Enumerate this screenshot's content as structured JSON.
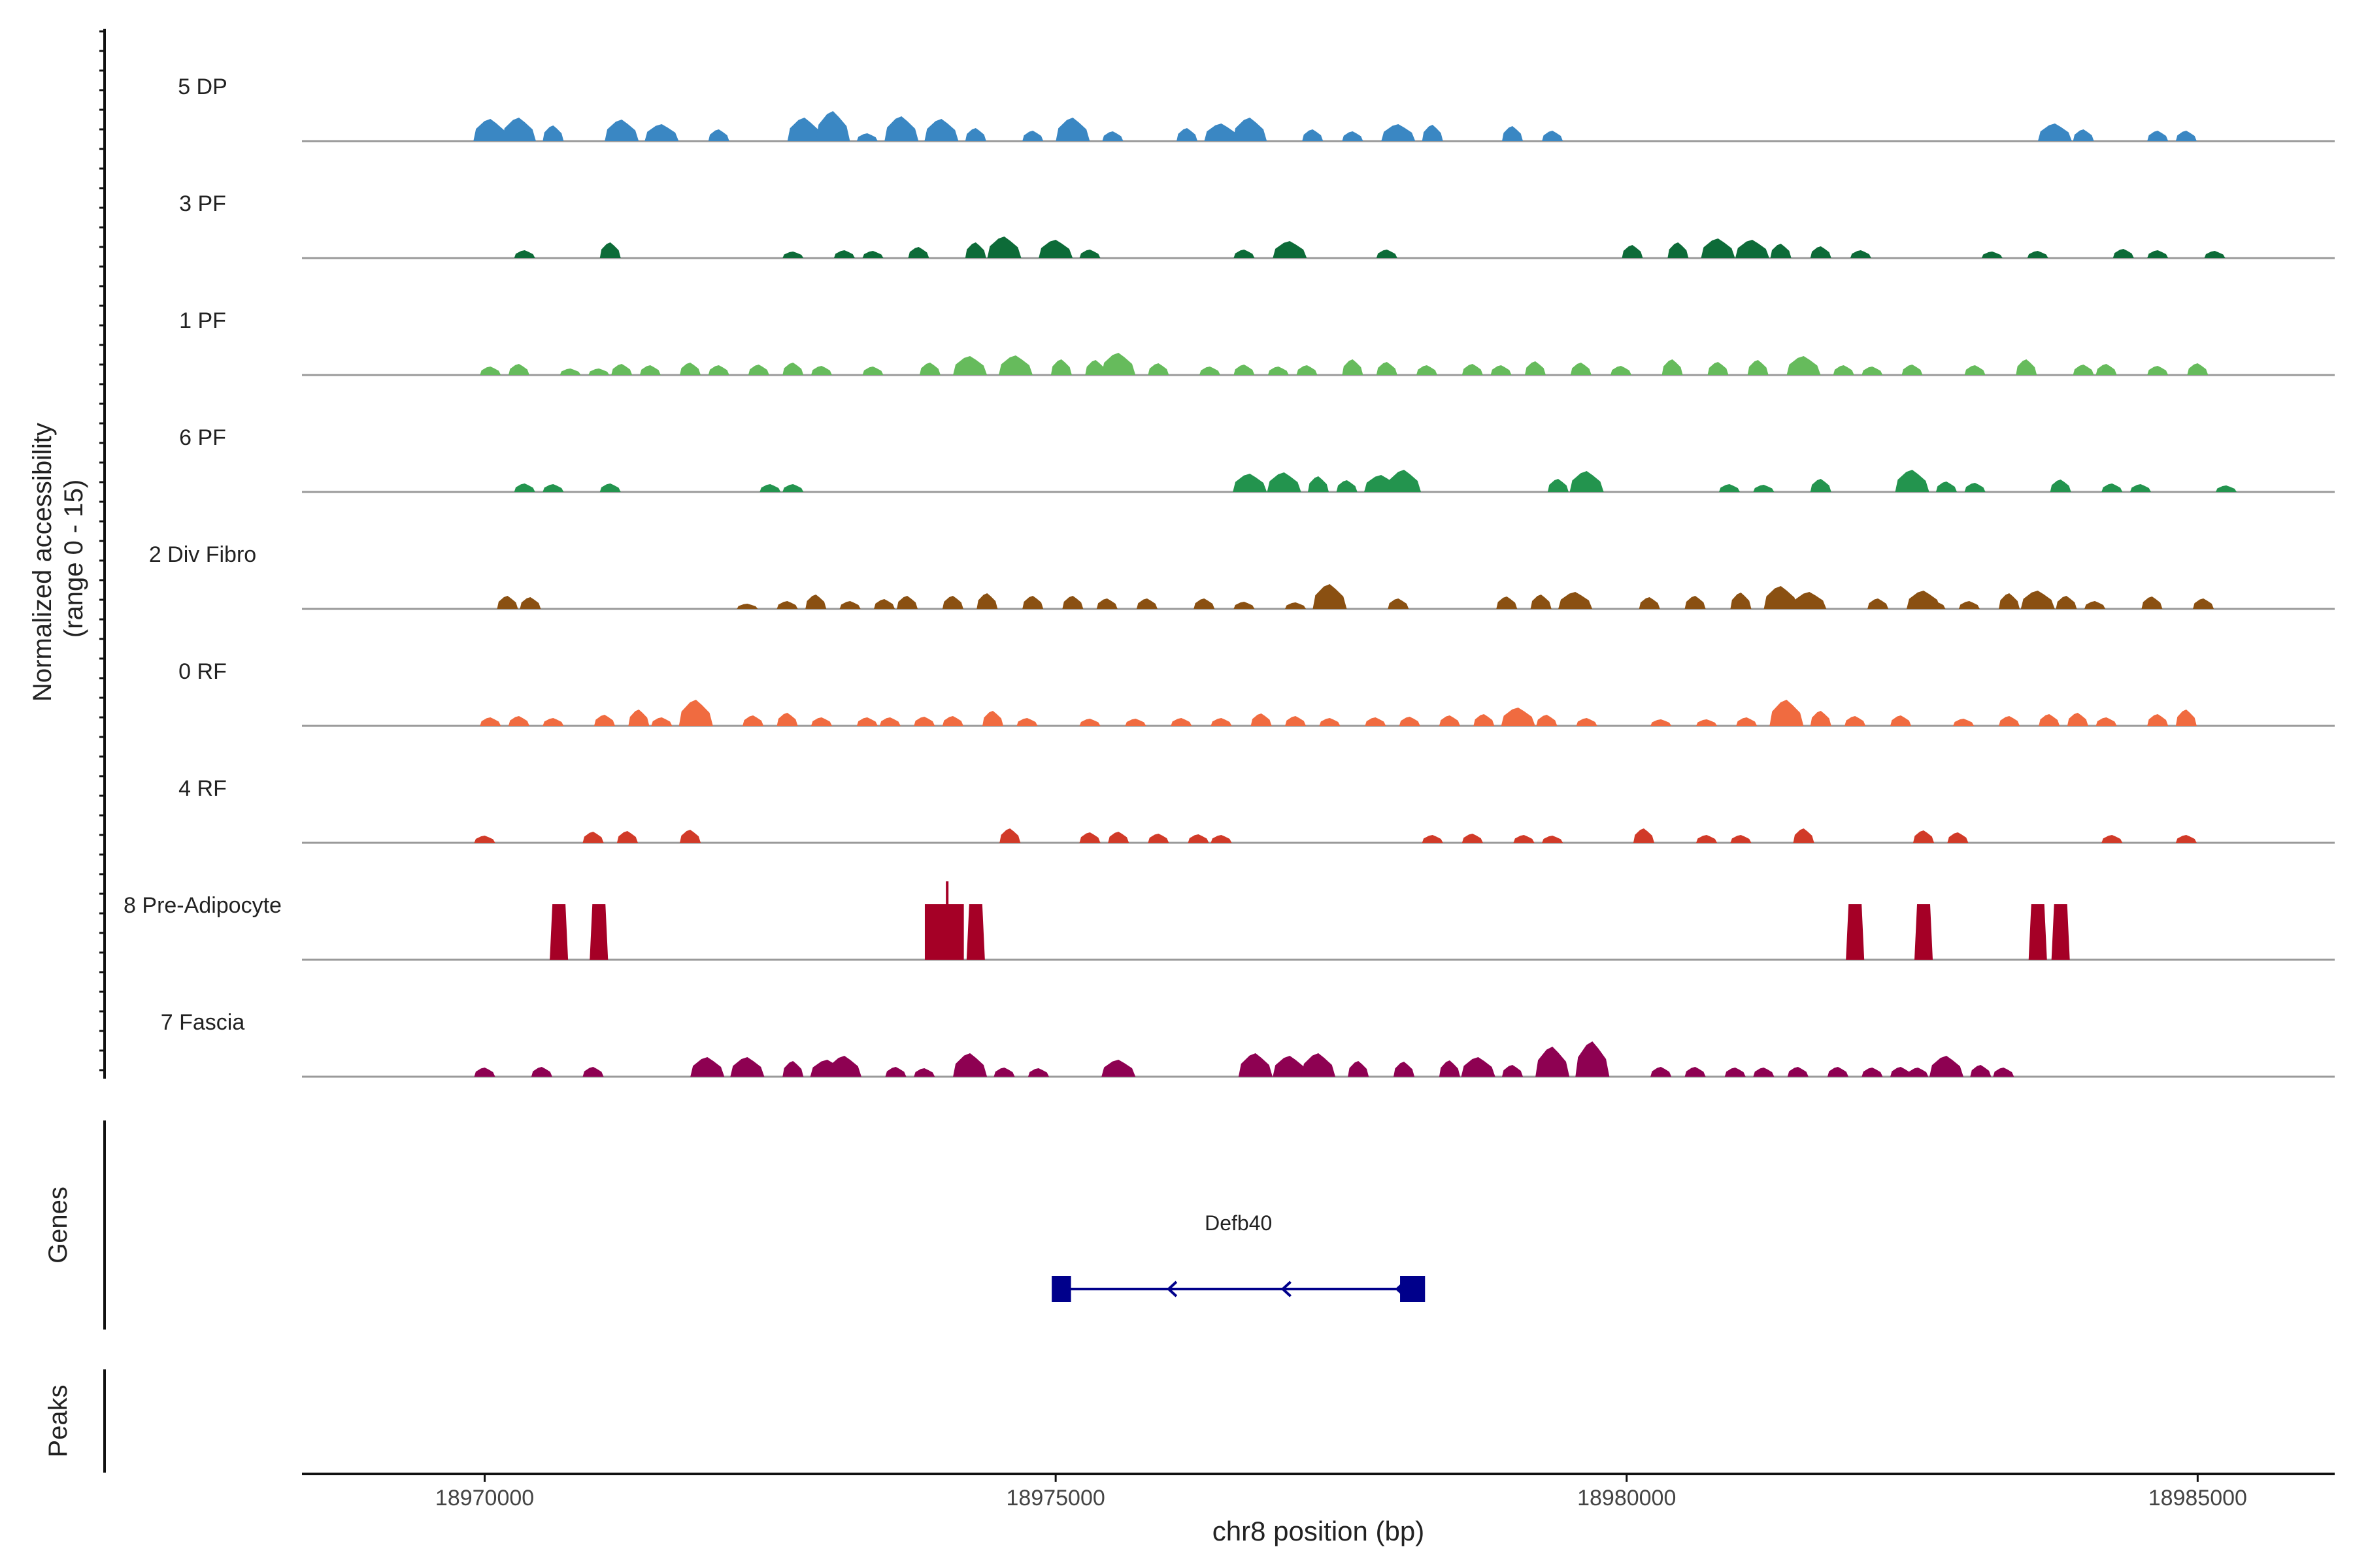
{
  "chart_data": {
    "type": "area",
    "title": "",
    "ylabel_line1": "Normalized accessibility",
    "ylabel_line2": "(range 0 - 15)",
    "xlabel": "chr8 position (bp)",
    "xlim": [
      18968400,
      18986200
    ],
    "ylim": [
      0,
      15
    ],
    "xticks": [
      18970000,
      18975000,
      18980000,
      18985000
    ],
    "xtick_labels": [
      "18970000",
      "18975000",
      "18980000",
      "18985000"
    ],
    "genes_label": "Genes",
    "peaks_label": "Peaks",
    "gene": {
      "name": "Defb40",
      "strand": "-",
      "start": 18975000,
      "end": 18978200,
      "exons": [
        [
          18975000,
          18975100
        ],
        [
          18978050,
          18978200
        ]
      ],
      "color": "#00008b"
    },
    "series": [
      {
        "name": "5 DP",
        "color": "#3a87c3",
        "peaks": [
          [
            18970050,
            3.4
          ],
          [
            18970300,
            3.6
          ],
          [
            18970600,
            2.4
          ],
          [
            18971200,
            3.3
          ],
          [
            18971550,
            2.6
          ],
          [
            18972050,
            1.8
          ],
          [
            18972800,
            3.6
          ],
          [
            18973050,
            4.6
          ],
          [
            18973350,
            1.2
          ],
          [
            18973650,
            3.8
          ],
          [
            18974000,
            3.4
          ],
          [
            18974300,
            2.0
          ],
          [
            18974800,
            1.6
          ],
          [
            18975150,
            3.6
          ],
          [
            18975500,
            1.5
          ],
          [
            18976150,
            2.0
          ],
          [
            18976450,
            2.7
          ],
          [
            18976700,
            3.6
          ],
          [
            18977250,
            1.8
          ],
          [
            18977600,
            1.5
          ],
          [
            18978000,
            2.6
          ],
          [
            18978300,
            2.5
          ],
          [
            18979000,
            2.3
          ],
          [
            18979350,
            1.6
          ],
          [
            18983750,
            2.7
          ],
          [
            18984000,
            1.8
          ],
          [
            18984650,
            1.6
          ],
          [
            18984900,
            1.6
          ]
        ]
      },
      {
        "name": "3 PF",
        "color": "#0d6b38",
        "peaks": [
          [
            18970350,
            1.2
          ],
          [
            18971100,
            2.4
          ],
          [
            18972700,
            1.0
          ],
          [
            18973150,
            1.2
          ],
          [
            18973400,
            1.1
          ],
          [
            18973800,
            1.7
          ],
          [
            18974300,
            2.4
          ],
          [
            18974550,
            3.3
          ],
          [
            18975000,
            2.8
          ],
          [
            18975300,
            1.3
          ],
          [
            18976650,
            1.3
          ],
          [
            18977050,
            2.6
          ],
          [
            18977900,
            1.3
          ],
          [
            18980050,
            2.0
          ],
          [
            18980450,
            2.4
          ],
          [
            18980800,
            3.0
          ],
          [
            18981100,
            2.8
          ],
          [
            18981350,
            2.2
          ],
          [
            18981700,
            1.8
          ],
          [
            18982050,
            1.2
          ],
          [
            18983200,
            1.0
          ],
          [
            18983600,
            1.1
          ],
          [
            18984350,
            1.4
          ],
          [
            18984650,
            1.2
          ],
          [
            18985150,
            1.1
          ]
        ]
      },
      {
        "name": "1 PF",
        "color": "#66bb5c",
        "peaks": [
          [
            18970050,
            1.3
          ],
          [
            18970300,
            1.7
          ],
          [
            18970750,
            1.0
          ],
          [
            18971000,
            1.0
          ],
          [
            18971200,
            1.7
          ],
          [
            18971450,
            1.5
          ],
          [
            18971800,
            1.9
          ],
          [
            18972050,
            1.5
          ],
          [
            18972400,
            1.6
          ],
          [
            18972700,
            1.9
          ],
          [
            18972950,
            1.4
          ],
          [
            18973400,
            1.3
          ],
          [
            18973900,
            1.9
          ],
          [
            18974250,
            2.9
          ],
          [
            18974650,
            3.0
          ],
          [
            18975050,
            2.4
          ],
          [
            18975350,
            2.3
          ],
          [
            18975550,
            3.4
          ],
          [
            18975900,
            1.8
          ],
          [
            18976350,
            1.3
          ],
          [
            18976650,
            1.6
          ],
          [
            18976950,
            1.3
          ],
          [
            18977200,
            1.5
          ],
          [
            18977600,
            2.4
          ],
          [
            18977900,
            2.0
          ],
          [
            18978250,
            1.5
          ],
          [
            18978650,
            1.7
          ],
          [
            18978900,
            1.5
          ],
          [
            18979200,
            2.1
          ],
          [
            18979600,
            1.9
          ],
          [
            18979950,
            1.4
          ],
          [
            18980400,
            2.4
          ],
          [
            18980800,
            2.0
          ],
          [
            18981150,
            2.3
          ],
          [
            18981550,
            2.9
          ],
          [
            18981900,
            1.5
          ],
          [
            18982150,
            1.3
          ],
          [
            18982500,
            1.6
          ],
          [
            18983050,
            1.5
          ],
          [
            18983500,
            2.4
          ],
          [
            18984000,
            1.6
          ],
          [
            18984200,
            1.7
          ],
          [
            18984650,
            1.4
          ],
          [
            18985000,
            1.8
          ]
        ]
      },
      {
        "name": "6 PF",
        "color": "#23944e",
        "peaks": [
          [
            18970350,
            1.3
          ],
          [
            18970600,
            1.2
          ],
          [
            18971100,
            1.3
          ],
          [
            18972500,
            1.2
          ],
          [
            18972700,
            1.2
          ],
          [
            18976700,
            2.8
          ],
          [
            18977000,
            3.0
          ],
          [
            18977300,
            2.4
          ],
          [
            18977550,
            1.8
          ],
          [
            18977850,
            2.6
          ],
          [
            18978050,
            3.4
          ],
          [
            18979400,
            2.0
          ],
          [
            18979650,
            3.2
          ],
          [
            18980900,
            1.2
          ],
          [
            18981200,
            1.1
          ],
          [
            18981700,
            2.0
          ],
          [
            18982500,
            3.4
          ],
          [
            18982800,
            1.6
          ],
          [
            18983050,
            1.4
          ],
          [
            18983800,
            1.9
          ],
          [
            18984250,
            1.3
          ],
          [
            18984500,
            1.2
          ],
          [
            18985250,
            1.0
          ]
        ]
      },
      {
        "name": "2 Div Fibro",
        "color": "#8a5012",
        "peaks": [
          [
            18970200,
            2.0
          ],
          [
            18970400,
            1.8
          ],
          [
            18972300,
            0.8
          ],
          [
            18972650,
            1.2
          ],
          [
            18972900,
            2.2
          ],
          [
            18973200,
            1.2
          ],
          [
            18973500,
            1.5
          ],
          [
            18973700,
            2.0
          ],
          [
            18974100,
            2.0
          ],
          [
            18974400,
            2.4
          ],
          [
            18974800,
            2.0
          ],
          [
            18975150,
            2.0
          ],
          [
            18975450,
            1.6
          ],
          [
            18975800,
            1.6
          ],
          [
            18976300,
            1.6
          ],
          [
            18976650,
            1.1
          ],
          [
            18977100,
            1.0
          ],
          [
            18977400,
            3.8
          ],
          [
            18978000,
            1.6
          ],
          [
            18978950,
            1.9
          ],
          [
            18979250,
            2.2
          ],
          [
            18979550,
            2.6
          ],
          [
            18980200,
            1.8
          ],
          [
            18980600,
            2.0
          ],
          [
            18981000,
            2.5
          ],
          [
            18981350,
            3.5
          ],
          [
            18981600,
            2.6
          ],
          [
            18982200,
            1.6
          ],
          [
            18982600,
            2.8
          ],
          [
            18982700,
            1.2
          ],
          [
            18983000,
            1.2
          ],
          [
            18983350,
            2.4
          ],
          [
            18983600,
            2.8
          ],
          [
            18983850,
            2.0
          ],
          [
            18984100,
            1.2
          ],
          [
            18984600,
            1.9
          ],
          [
            18985050,
            1.6
          ]
        ]
      },
      {
        "name": "0 RF",
        "color": "#f06b40",
        "peaks": [
          [
            18970050,
            1.3
          ],
          [
            18970300,
            1.5
          ],
          [
            18970600,
            1.2
          ],
          [
            18971050,
            1.7
          ],
          [
            18971350,
            2.5
          ],
          [
            18971550,
            1.3
          ],
          [
            18971850,
            4.0
          ],
          [
            18972350,
            1.6
          ],
          [
            18972650,
            2.0
          ],
          [
            18972950,
            1.3
          ],
          [
            18973350,
            1.3
          ],
          [
            18973550,
            1.3
          ],
          [
            18973850,
            1.4
          ],
          [
            18974100,
            1.5
          ],
          [
            18974450,
            2.3
          ],
          [
            18974750,
            1.2
          ],
          [
            18975300,
            1.1
          ],
          [
            18975700,
            1.1
          ],
          [
            18976100,
            1.2
          ],
          [
            18976450,
            1.2
          ],
          [
            18976800,
            1.9
          ],
          [
            18977100,
            1.5
          ],
          [
            18977400,
            1.2
          ],
          [
            18977800,
            1.3
          ],
          [
            18978100,
            1.4
          ],
          [
            18978450,
            1.6
          ],
          [
            18978750,
            1.8
          ],
          [
            18979050,
            2.8
          ],
          [
            18979300,
            1.7
          ],
          [
            18979650,
            1.2
          ],
          [
            18980300,
            1.0
          ],
          [
            18980700,
            1.0
          ],
          [
            18981050,
            1.3
          ],
          [
            18981400,
            4.0
          ],
          [
            18981700,
            2.3
          ],
          [
            18982000,
            1.5
          ],
          [
            18982400,
            1.6
          ],
          [
            18982950,
            1.1
          ],
          [
            18983350,
            1.5
          ],
          [
            18983700,
            1.8
          ],
          [
            18983950,
            2.0
          ],
          [
            18984200,
            1.3
          ],
          [
            18984650,
            1.8
          ],
          [
            18984900,
            2.5
          ]
        ]
      },
      {
        "name": "4 RF",
        "color": "#d13a28",
        "peaks": [
          [
            18970000,
            1.1
          ],
          [
            18970950,
            1.7
          ],
          [
            18971250,
            1.8
          ],
          [
            18971800,
            2.0
          ],
          [
            18974600,
            2.2
          ],
          [
            18975300,
            1.6
          ],
          [
            18975550,
            1.7
          ],
          [
            18975900,
            1.4
          ],
          [
            18976250,
            1.3
          ],
          [
            18976450,
            1.2
          ],
          [
            18978300,
            1.2
          ],
          [
            18978650,
            1.4
          ],
          [
            18979100,
            1.2
          ],
          [
            18979350,
            1.1
          ],
          [
            18980150,
            2.2
          ],
          [
            18980700,
            1.2
          ],
          [
            18981000,
            1.2
          ],
          [
            18981550,
            2.2
          ],
          [
            18982600,
            1.9
          ],
          [
            18982900,
            1.6
          ],
          [
            18984250,
            1.2
          ],
          [
            18984900,
            1.2
          ]
        ]
      },
      {
        "name": "8 Pre-Adipocyte",
        "color": "#a50026",
        "peaks": [
          [
            18970650,
            8.5
          ],
          [
            18971000,
            8.5
          ],
          [
            18973950,
            8.5
          ],
          [
            18974050,
            12.0
          ],
          [
            18974300,
            8.5
          ],
          [
            18982000,
            8.5
          ],
          [
            18982600,
            8.5
          ],
          [
            18983600,
            8.5
          ],
          [
            18983800,
            8.5
          ]
        ]
      },
      {
        "name": "7 Fascia",
        "color": "#8e0152",
        "peaks": [
          [
            18970000,
            1.4
          ],
          [
            18970500,
            1.5
          ],
          [
            18970950,
            1.5
          ],
          [
            18971950,
            3.0
          ],
          [
            18972300,
            3.0
          ],
          [
            18972700,
            2.4
          ],
          [
            18973000,
            2.6
          ],
          [
            18973150,
            3.2
          ],
          [
            18973600,
            1.5
          ],
          [
            18973850,
            1.3
          ],
          [
            18974250,
            3.6
          ],
          [
            18974550,
            1.4
          ],
          [
            18974850,
            1.3
          ],
          [
            18975550,
            2.6
          ],
          [
            18976750,
            3.6
          ],
          [
            18977050,
            3.2
          ],
          [
            18977300,
            3.6
          ],
          [
            18977650,
            2.4
          ],
          [
            18978050,
            2.3
          ],
          [
            18978450,
            2.5
          ],
          [
            18978700,
            3.0
          ],
          [
            18979000,
            1.8
          ],
          [
            18979350,
            4.6
          ],
          [
            18979700,
            5.4
          ],
          [
            18980300,
            1.5
          ],
          [
            18980600,
            1.5
          ],
          [
            18980950,
            1.4
          ],
          [
            18981200,
            1.4
          ],
          [
            18981500,
            1.5
          ],
          [
            18981850,
            1.5
          ],
          [
            18982150,
            1.4
          ],
          [
            18982400,
            1.5
          ],
          [
            18982550,
            1.4
          ],
          [
            18982800,
            3.2
          ],
          [
            18983100,
            1.8
          ],
          [
            18983300,
            1.4
          ]
        ]
      }
    ]
  }
}
